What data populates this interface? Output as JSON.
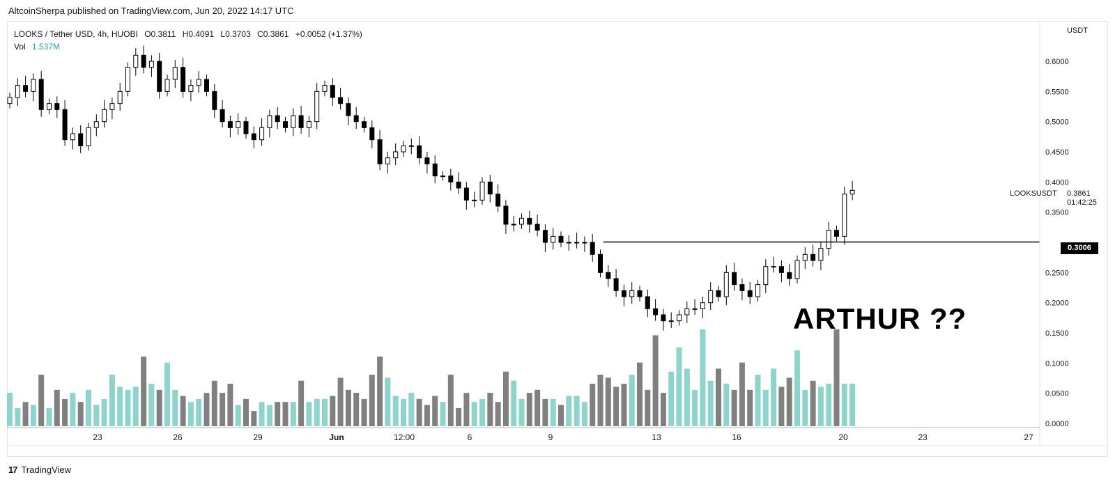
{
  "publisher_line": "AltcoinSherpa published on TradingView.com, Jun 20, 2022 14:17 UTC",
  "footer_brand": "TradingView",
  "legend": {
    "symbol": "LOOKS / Tether USD, 4h, HUOBI",
    "open": "O0.3811",
    "high": "H0.4091",
    "low": "L0.3703",
    "close": "C0.3861",
    "change": "+0.0052 (+1.37%)",
    "vol_label": "Vol",
    "vol_value": "1.537M"
  },
  "annotation": "ARTHUR ??",
  "price_axis": {
    "currency": "USDT",
    "symbol_label": "LOOKSUSDT",
    "last_price": "0.3861",
    "countdown": "01:42:25",
    "hline_label": "0.3006"
  },
  "colors": {
    "up_candle_fill": "#ffffff",
    "down_candle_fill": "#000000",
    "candle_outline": "#000000",
    "volume_up": "#8ed3cc",
    "volume_down": "#808080",
    "horizontal_line": "#000000"
  },
  "chart_data": {
    "type": "candlestick",
    "title": "LOOKS / Tether USD, 4h, HUOBI",
    "ylabel": "USDT",
    "ylim": [
      0.0,
      0.65
    ],
    "yticks": [
      "0.6000",
      "0.5500",
      "0.5000",
      "0.4500",
      "0.4000",
      "0.3500",
      "0.2500",
      "0.2000",
      "0.1500",
      "0.1000",
      "0.0500",
      "0.0000"
    ],
    "xticks": [
      "23",
      "26",
      "29",
      "Jun",
      "12:00",
      "6",
      "9",
      "13",
      "16",
      "20",
      "23",
      "27"
    ],
    "horizontal_line": 0.3006,
    "close_series": [
      0.54,
      0.56,
      0.55,
      0.57,
      0.52,
      0.53,
      0.52,
      0.47,
      0.48,
      0.46,
      0.49,
      0.5,
      0.52,
      0.53,
      0.55,
      0.59,
      0.61,
      0.59,
      0.6,
      0.55,
      0.57,
      0.59,
      0.55,
      0.56,
      0.57,
      0.55,
      0.52,
      0.5,
      0.49,
      0.5,
      0.48,
      0.47,
      0.49,
      0.51,
      0.5,
      0.49,
      0.51,
      0.49,
      0.5,
      0.55,
      0.56,
      0.54,
      0.53,
      0.51,
      0.5,
      0.49,
      0.47,
      0.43,
      0.44,
      0.45,
      0.46,
      0.46,
      0.44,
      0.43,
      0.41,
      0.41,
      0.4,
      0.39,
      0.37,
      0.37,
      0.4,
      0.38,
      0.36,
      0.33,
      0.33,
      0.34,
      0.33,
      0.32,
      0.3,
      0.31,
      0.3,
      0.3,
      0.3,
      0.3,
      0.28,
      0.25,
      0.24,
      0.22,
      0.21,
      0.22,
      0.21,
      0.19,
      0.18,
      0.17,
      0.17,
      0.18,
      0.19,
      0.19,
      0.2,
      0.22,
      0.21,
      0.25,
      0.23,
      0.22,
      0.21,
      0.23,
      0.26,
      0.26,
      0.25,
      0.24,
      0.27,
      0.28,
      0.27,
      0.29,
      0.32,
      0.31,
      0.38,
      0.3861
    ],
    "volume_series": [
      0.055,
      0.03,
      0.04,
      0.035,
      0.085,
      0.03,
      0.06,
      0.045,
      0.055,
      0.04,
      0.06,
      0.035,
      0.045,
      0.085,
      0.065,
      0.06,
      0.065,
      0.115,
      0.07,
      0.06,
      0.105,
      0.06,
      0.05,
      0.04,
      0.045,
      0.055,
      0.075,
      0.055,
      0.07,
      0.035,
      0.045,
      0.025,
      0.04,
      0.035,
      0.04,
      0.04,
      0.04,
      0.075,
      0.04,
      0.045,
      0.045,
      0.05,
      0.08,
      0.06,
      0.055,
      0.045,
      0.085,
      0.115,
      0.08,
      0.05,
      0.045,
      0.055,
      0.045,
      0.035,
      0.05,
      0.04,
      0.085,
      0.03,
      0.055,
      0.04,
      0.045,
      0.055,
      0.04,
      0.09,
      0.075,
      0.045,
      0.055,
      0.06,
      0.045,
      0.045,
      0.035,
      0.05,
      0.05,
      0.04,
      0.07,
      0.085,
      0.08,
      0.065,
      0.07,
      0.085,
      0.105,
      0.06,
      0.15,
      0.055,
      0.09,
      0.13,
      0.095,
      0.06,
      0.16,
      0.075,
      0.095,
      0.07,
      0.06,
      0.105,
      0.06,
      0.085,
      0.06,
      0.095,
      0.065,
      0.08,
      0.125,
      0.06,
      0.075,
      0.065,
      0.07,
      0.16,
      0.07,
      0.07
    ]
  }
}
